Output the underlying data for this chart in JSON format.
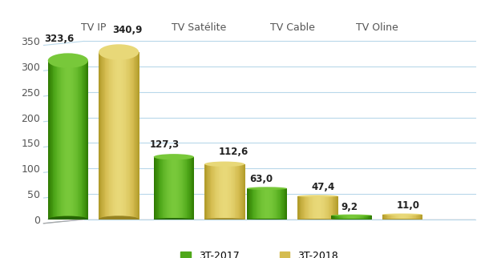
{
  "categories": [
    "TV IP",
    "TV Satélite",
    "TV Cable",
    "TV Oline"
  ],
  "values_2017": [
    323.6,
    127.3,
    63.0,
    9.2
  ],
  "values_2018": [
    340.9,
    112.6,
    47.4,
    11.0
  ],
  "labels_2017": [
    "323,6",
    "127,3",
    "63,0",
    "9,2"
  ],
  "labels_2018": [
    "340,9",
    "112,6",
    "47,4",
    "11,0"
  ],
  "color_green_light": "#78c83a",
  "color_green_mid": "#4fa81a",
  "color_green_dark": "#2d7800",
  "color_gold_light": "#e8d878",
  "color_gold_mid": "#d4bc50",
  "color_gold_dark": "#b09a28",
  "legend_green": "3T-2017",
  "legend_gold": "3T-2018",
  "ylim": [
    0,
    360
  ],
  "yticks": [
    0,
    50,
    100,
    150,
    200,
    250,
    300,
    350
  ],
  "background_color": "#ffffff",
  "grid_color": "#b8d8ea",
  "label_fontsize": 8.5,
  "cat_fontsize": 9,
  "legend_fontsize": 9,
  "bar_width": 0.38,
  "group_positions": [
    0.42,
    1.42,
    2.3,
    3.1
  ],
  "bar_gap": 0.1
}
